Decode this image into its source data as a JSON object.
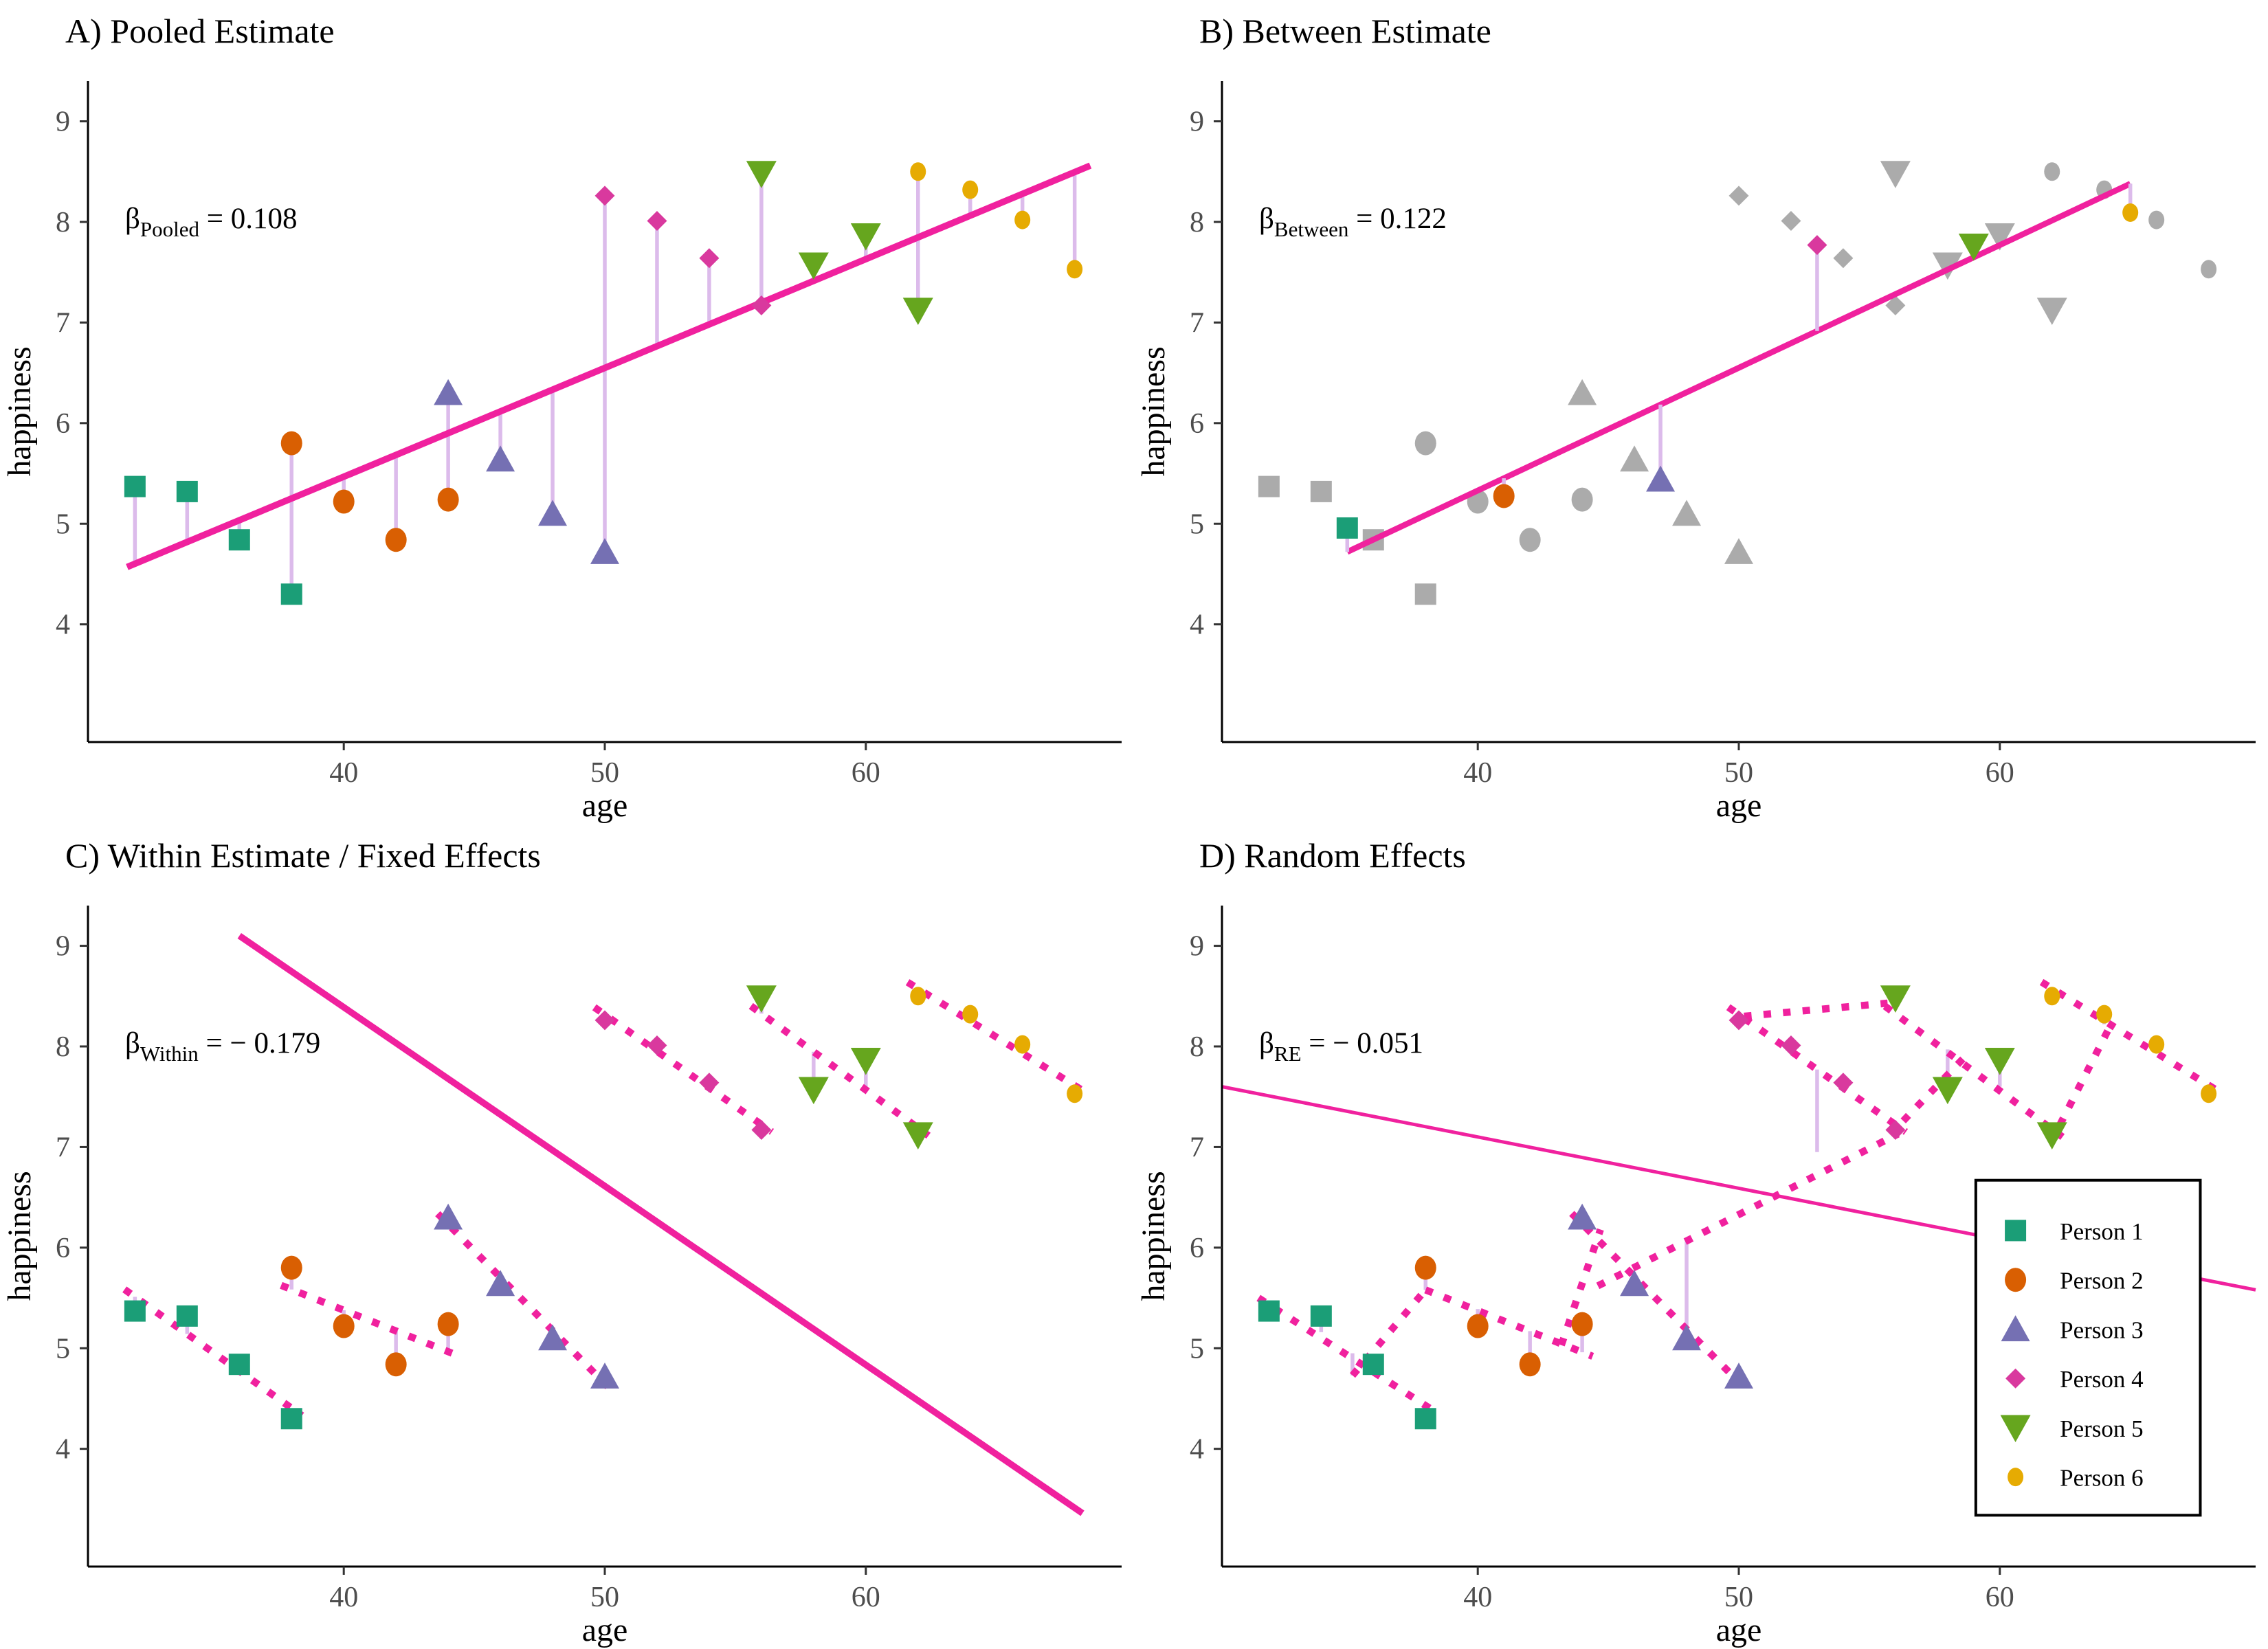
{
  "chart_data": {
    "type": "scatter",
    "xlabel": "age",
    "ylabel": "happiness",
    "x_ticks": [
      40,
      50,
      60
    ],
    "y_ticks": [
      4,
      5,
      6,
      7,
      8,
      9
    ],
    "x_range": [
      30.2,
      69.8
    ],
    "y_range": [
      2.83,
      9.4
    ],
    "grid": "off",
    "betas": {
      "pooled": 0.108,
      "between": 0.122,
      "within": -0.179,
      "re": -0.051
    },
    "persons": [
      {
        "name": "Person 1",
        "shape": "square",
        "color": "#1B9E77",
        "size": 31,
        "points": [
          [
            32,
            5.37
          ],
          [
            34,
            5.32
          ],
          [
            36,
            4.84
          ],
          [
            38,
            4.3
          ]
        ],
        "mean": [
          35,
          4.9575
        ],
        "within_slope": -0.1845
      },
      {
        "name": "Person 2",
        "shape": "circle",
        "color": "#D95F02",
        "size": 31,
        "points": [
          [
            38,
            5.8
          ],
          [
            40,
            5.22
          ],
          [
            42,
            4.84
          ],
          [
            44,
            5.24
          ]
        ],
        "mean": [
          41,
          5.275
        ],
        "within_slope": -0.103
      },
      {
        "name": "Person 3",
        "shape": "triangle-up",
        "color": "#7570B3",
        "size": 42,
        "points": [
          [
            44,
            6.3
          ],
          [
            46,
            5.64
          ],
          [
            48,
            5.1
          ],
          [
            50,
            4.72
          ]
        ],
        "mean": [
          47,
          5.44
        ],
        "within_slope": -0.264
      },
      {
        "name": "Person 4",
        "shape": "diamond",
        "color": "#D9399E",
        "size": 29,
        "points": [
          [
            50,
            8.26
          ],
          [
            52,
            8.01
          ],
          [
            54,
            7.64
          ],
          [
            56,
            7.17
          ]
        ],
        "mean": [
          53,
          7.77
        ],
        "within_slope": -0.182
      },
      {
        "name": "Person 5",
        "shape": "triangle-down",
        "color": "#66A61E",
        "size": 44,
        "points": [
          [
            56,
            8.48
          ],
          [
            58,
            7.57
          ],
          [
            60,
            7.86
          ],
          [
            62,
            7.12
          ]
        ],
        "mean": [
          59,
          7.7575
        ],
        "within_slope": -0.1895
      },
      {
        "name": "Person 6",
        "shape": "circle",
        "color": "#E6AB02",
        "size": 23,
        "points": [
          [
            62,
            8.5
          ],
          [
            64,
            8.32
          ],
          [
            66,
            8.02
          ],
          [
            68,
            7.53
          ]
        ],
        "mean": [
          65,
          8.0925
        ],
        "within_slope": -0.1605
      }
    ],
    "panels": {
      "A": {
        "title": "A) Pooled Estimate",
        "beta_symbol": "β",
        "beta_sub": "Pooled",
        "beta_value": " = 0.108",
        "line": {
          "x1": 31.7,
          "y1": 4.57,
          "x2": 68.6,
          "y2": 8.56,
          "width": 9.5
        },
        "fit": {
          "intercept_at_50": 6.55,
          "slope": 0.108
        },
        "residuals": "points_to_line"
      },
      "B": {
        "title": "B) Between Estimate",
        "beta_symbol": "β",
        "beta_sub": "Between",
        "beta_value": " = 0.122",
        "line": {
          "x1": 35.0,
          "y1": 4.72,
          "x2": 65.0,
          "y2": 8.38,
          "width": 8.5
        },
        "fit": {
          "intercept_at_50": 6.55,
          "slope": 0.122
        },
        "residuals": "means_to_line",
        "gray_color": "#ABABAB"
      },
      "C": {
        "title": "C) Within Estimate / Fixed Effects",
        "beta_symbol": "β",
        "beta_sub": "Within",
        "beta_value": " = − 0.179",
        "line": {
          "x1": 36.0,
          "y1": 9.1,
          "x2": 68.3,
          "y2": 3.36,
          "width": 9.5
        },
        "person_line_halfspan": 3.4,
        "residuals": "points_to_person_lines"
      },
      "D": {
        "title": "D) Random Effects",
        "beta_symbol": "β",
        "beta_sub": "RE",
        "beta_value": " = − 0.051",
        "line": {
          "x1": 30.2,
          "y1": 7.6,
          "x2": 69.8,
          "y2": 5.58,
          "width": 5
        },
        "dotted_segments": [
          [
            31.6,
            5.5,
            38.3,
            4.38
          ],
          [
            35.2,
            4.73,
            38.0,
            5.58
          ],
          [
            38.0,
            5.58,
            44.4,
            4.92
          ],
          [
            43.2,
            5.03,
            44.7,
            6.18
          ],
          [
            43.6,
            6.34,
            50.4,
            4.56
          ],
          [
            44.6,
            5.62,
            56.1,
            7.13
          ],
          [
            49.6,
            8.39,
            56.4,
            7.15
          ],
          [
            50.2,
            8.3,
            55.7,
            8.43
          ],
          [
            55.6,
            8.4,
            62.4,
            7.1
          ],
          [
            56.3,
            7.26,
            58.6,
            7.88
          ],
          [
            62.3,
            7.22,
            64.3,
            8.24
          ],
          [
            61.6,
            8.64,
            68.4,
            7.55
          ]
        ],
        "residual_segments": [
          [
            34,
            5.32,
            5.16
          ],
          [
            35.2,
            4.95,
            4.73
          ],
          [
            36,
            4.84,
            4.78
          ],
          [
            38,
            4.3,
            4.42
          ],
          [
            38,
            5.8,
            5.58
          ],
          [
            40,
            5.22,
            5.39
          ],
          [
            42,
            4.84,
            5.17
          ],
          [
            44,
            5.24,
            4.96
          ],
          [
            44,
            6.3,
            6.2
          ],
          [
            48,
            5.1,
            6.06
          ],
          [
            53,
            7.77,
            6.95
          ],
          [
            56,
            8.48,
            8.43
          ],
          [
            58,
            7.57,
            7.97
          ],
          [
            60,
            7.86,
            7.6
          ],
          [
            62,
            7.12,
            7.23
          ],
          [
            64,
            8.32,
            8.22
          ],
          [
            68,
            7.53,
            7.6
          ]
        ]
      }
    },
    "legend": {
      "position": "panel D, lower right",
      "items": [
        "Person 1",
        "Person 2",
        "Person 3",
        "Person 4",
        "Person 5",
        "Person 6"
      ],
      "box": {
        "x1": 59.08,
        "y1": 3.34,
        "x2": 67.68,
        "y2": 6.67
      }
    }
  },
  "styles": {
    "line_color": "#F0219E",
    "residual_color": "#DCBBEB",
    "gray_point_color": "#ABABAB",
    "axis_color": "#000000",
    "tick_label_color": "#4D4D4D",
    "background": "#FFFFFF",
    "legend_border": "#000000"
  }
}
